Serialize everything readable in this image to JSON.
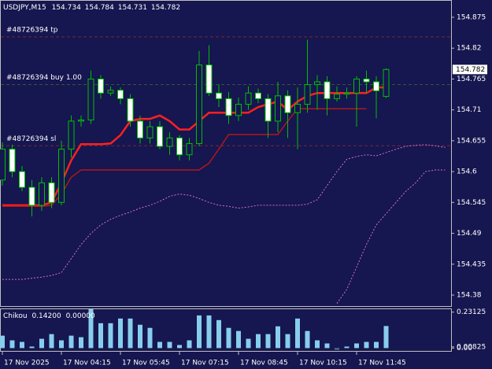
{
  "chart_data": {
    "type": "candlestick",
    "symbol": "USDJPY,M15",
    "header_ohlc": [
      154.734,
      154.784,
      154.731,
      154.782
    ],
    "categories": [
      "17 Nov 2025",
      null,
      null,
      null,
      null,
      null,
      "17 Nov 04:15",
      null,
      null,
      null,
      null,
      null,
      "17 Nov 05:45",
      null,
      null,
      null,
      null,
      null,
      "17 Nov 07:15",
      null,
      null,
      null,
      null,
      null,
      "17 Nov 08:45",
      null,
      null,
      null,
      null,
      null,
      "17 Nov 10:15",
      null,
      null,
      null,
      null,
      null,
      "17 Nov 11:45",
      null,
      null,
      null,
      null,
      null,
      null,
      null,
      null,
      null
    ],
    "open": [
      154.585,
      154.64,
      154.6,
      154.572,
      154.54,
      154.58,
      154.545,
      154.64,
      154.69,
      154.692,
      154.765,
      154.74,
      154.745,
      154.73,
      154.69,
      154.66,
      154.68,
      154.645,
      154.66,
      154.63,
      154.65,
      154.79,
      154.74,
      154.73,
      154.7,
      154.72,
      154.74,
      154.73,
      154.69,
      154.735,
      154.705,
      154.72,
      154.755,
      154.76,
      154.73,
      154.738,
      154.74,
      154.765,
      154.76,
      154.734,
      null,
      null,
      null,
      null,
      null,
      null
    ],
    "high": [
      154.652,
      154.648,
      154.61,
      154.585,
      154.59,
      154.59,
      154.655,
      154.7,
      154.7,
      154.78,
      154.772,
      154.752,
      154.75,
      154.738,
      154.7,
      154.69,
      154.69,
      154.67,
      154.665,
      154.66,
      154.815,
      154.825,
      154.755,
      154.742,
      154.732,
      154.752,
      154.748,
      154.738,
      154.76,
      154.745,
      154.75,
      154.835,
      154.772,
      154.77,
      154.752,
      154.75,
      154.77,
      154.78,
      154.77,
      154.784,
      null,
      null,
      null,
      null,
      null,
      null
    ],
    "low": [
      154.575,
      154.59,
      154.565,
      154.52,
      154.53,
      154.535,
      154.54,
      154.625,
      154.68,
      154.685,
      154.73,
      154.735,
      154.72,
      154.68,
      154.65,
      154.65,
      154.64,
      154.63,
      154.62,
      154.62,
      154.645,
      154.735,
      154.715,
      154.685,
      154.69,
      154.71,
      154.722,
      154.66,
      154.67,
      154.66,
      154.64,
      154.705,
      154.71,
      154.7,
      154.725,
      154.73,
      154.68,
      154.74,
      154.695,
      154.731,
      null,
      null,
      null,
      null,
      null,
      null
    ],
    "close": [
      154.64,
      154.6,
      154.572,
      154.54,
      154.58,
      154.545,
      154.64,
      154.69,
      154.692,
      154.765,
      154.74,
      154.745,
      154.73,
      154.69,
      154.66,
      154.68,
      154.645,
      154.66,
      154.63,
      154.65,
      154.79,
      154.74,
      154.73,
      154.7,
      154.72,
      154.74,
      154.73,
      154.69,
      154.735,
      154.705,
      154.72,
      154.755,
      154.76,
      154.73,
      154.738,
      154.74,
      154.765,
      154.76,
      154.744,
      154.782,
      null,
      null,
      null,
      null,
      null,
      null
    ],
    "up_color": "#00c000",
    "down_color": "#ffffff",
    "lines": [
      {
        "color": "#ff2020",
        "width": 2.5,
        "dash": "none",
        "values": [
          154.54,
          154.54,
          154.54,
          154.54,
          154.54,
          154.545,
          154.58,
          154.62,
          154.649,
          154.649,
          154.649,
          154.65,
          154.665,
          154.69,
          154.694,
          154.694,
          154.7,
          154.69,
          154.675,
          154.675,
          154.69,
          154.705,
          154.705,
          154.705,
          154.705,
          154.705,
          154.715,
          154.72,
          154.725,
          154.71,
          154.725,
          154.735,
          154.74,
          154.74,
          154.74,
          154.74,
          154.74,
          154.74,
          154.75,
          154.75,
          null,
          null,
          null,
          null,
          null,
          null
        ]
      },
      {
        "color": "#b01818",
        "width": 1.5,
        "dash": "none",
        "values": [
          154.538,
          154.538,
          154.538,
          154.538,
          154.538,
          154.54,
          154.56,
          154.59,
          154.603,
          154.603,
          154.603,
          154.603,
          154.603,
          154.603,
          154.603,
          154.603,
          154.603,
          154.603,
          154.603,
          154.603,
          154.603,
          154.615,
          154.64,
          154.666,
          154.666,
          154.666,
          154.666,
          154.666,
          154.666,
          154.69,
          154.712,
          154.712,
          154.712,
          154.712,
          154.712,
          154.712,
          154.712,
          154.712,
          null,
          null,
          null,
          null,
          null,
          null,
          null,
          null
        ]
      },
      {
        "color": "#d070d0",
        "width": 1,
        "dash": "2 2",
        "values": [
          154.408,
          154.408,
          154.408,
          154.41,
          154.412,
          154.415,
          154.42,
          154.445,
          154.47,
          154.49,
          154.505,
          154.515,
          154.522,
          154.528,
          154.535,
          154.54,
          154.547,
          154.556,
          154.56,
          154.558,
          154.552,
          154.545,
          154.54,
          154.538,
          154.535,
          154.537,
          154.54,
          154.54,
          154.54,
          154.54,
          154.54,
          154.542,
          154.55,
          154.575,
          154.6,
          154.622,
          154.627,
          154.63,
          154.628,
          154.634,
          154.64,
          154.645,
          154.647,
          154.648,
          154.646,
          154.643
        ]
      },
      {
        "color": "#d070d0",
        "width": 1,
        "dash": "2 2",
        "values": [
          null,
          null,
          null,
          null,
          null,
          null,
          null,
          null,
          null,
          null,
          null,
          null,
          null,
          null,
          null,
          null,
          null,
          null,
          null,
          null,
          null,
          null,
          null,
          null,
          null,
          null,
          null,
          null,
          null,
          null,
          null,
          null,
          null,
          null,
          154.365,
          154.39,
          154.43,
          154.47,
          154.505,
          154.525,
          154.545,
          154.565,
          154.58,
          154.6,
          154.603,
          154.603
        ]
      }
    ],
    "orders": [
      {
        "label": "#48726394 tp",
        "price": 154.84,
        "color": "#7a2a2a"
      },
      {
        "label": "#48726394 buy 1.00",
        "price": 154.755,
        "color": "#2f5a2f"
      },
      {
        "label": "#48726394 sl",
        "price": 154.646,
        "color": "#7a2a2a"
      }
    ],
    "last_price": 154.782,
    "ylim": [
      154.359,
      154.903
    ],
    "yticks": [
      154.875,
      154.82,
      154.765,
      154.71,
      154.655,
      154.6,
      154.545,
      154.49,
      154.435,
      154.38
    ],
    "subplot": {
      "type": "bar",
      "name": "Chikou",
      "header_values": [
        0.142,
        0
      ],
      "header_value_labels": [
        "0.14200",
        "0.00000"
      ],
      "values": [
        0.08,
        0.05,
        0.04,
        0.01,
        0.06,
        0.09,
        0.05,
        0.08,
        0.07,
        0.25,
        0.16,
        0.16,
        0.19,
        0.19,
        0.15,
        0.13,
        0.04,
        0.04,
        0.02,
        0.05,
        0.21,
        0.21,
        0.18,
        0.13,
        0.11,
        0.06,
        0.09,
        0.09,
        0.14,
        0.09,
        0.19,
        0.11,
        0.05,
        0.03,
        -0.01,
        0.01,
        0.03,
        0.04,
        0.04,
        0.142,
        null,
        null,
        null,
        null,
        null,
        null
      ],
      "color": "#87ceeb",
      "negative_color": "#4a7ab8",
      "ylim": [
        -0.018,
        0.25
      ],
      "yticks": [
        0.23125,
        0.00825,
        {
          "value": 0,
          "label": "0.00"
        }
      ]
    }
  }
}
